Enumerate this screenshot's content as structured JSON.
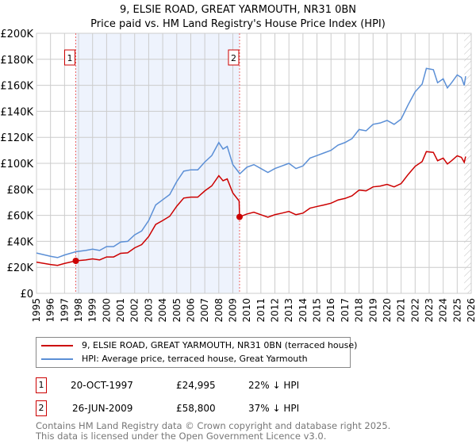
{
  "title": "9, ELSIE ROAD, GREAT YARMOUTH, NR31 0BN",
  "subtitle": "Price paid vs. HM Land Registry's House Price Index (HPI)",
  "legend": {
    "property": "9, ELSIE ROAD, GREAT YARMOUTH, NR31 0BN (terraced house)",
    "hpi": "HPI: Average price, terraced house, Great Yarmouth"
  },
  "sales": [
    {
      "num": "1",
      "date": "20-OCT-1997",
      "price": "£24,995",
      "delta": "22% ↓ HPI",
      "year": 1997.8,
      "value": 24995
    },
    {
      "num": "2",
      "date": "26-JUN-2009",
      "price": "£58,800",
      "delta": "37% ↓ HPI",
      "year": 2009.48,
      "value": 58800
    }
  ],
  "footer": {
    "line1": "Contains HM Land Registry data © Crown copyright and database right 2025.",
    "line2": "This data is licensed under the Open Government Licence v3.0."
  },
  "colors": {
    "property": "#cc0000",
    "hpi": "#5b8fd6",
    "shade": "#eef3fd"
  },
  "chart_data": {
    "type": "line",
    "xlim": [
      1995,
      2026
    ],
    "ylim": [
      0,
      200000
    ],
    "yticks": [
      {
        "v": 0,
        "label": "£0"
      },
      {
        "v": 20000,
        "label": "£20K"
      },
      {
        "v": 40000,
        "label": "£40K"
      },
      {
        "v": 60000,
        "label": "£60K"
      },
      {
        "v": 80000,
        "label": "£80K"
      },
      {
        "v": 100000,
        "label": "£100K"
      },
      {
        "v": 120000,
        "label": "£120K"
      },
      {
        "v": 140000,
        "label": "£140K"
      },
      {
        "v": 160000,
        "label": "£160K"
      },
      {
        "v": 180000,
        "label": "£180K"
      },
      {
        "v": 200000,
        "label": "£200K"
      }
    ],
    "xticks": [
      "1995",
      "1996",
      "1997",
      "1998",
      "1999",
      "2000",
      "2001",
      "2002",
      "2003",
      "2004",
      "2005",
      "2006",
      "2007",
      "2008",
      "2009",
      "2010",
      "2011",
      "2012",
      "2013",
      "2014",
      "2015",
      "2016",
      "2017",
      "2018",
      "2019",
      "2020",
      "2021",
      "2022",
      "2023",
      "2024",
      "2025",
      "2026"
    ],
    "hpi": [
      [
        1995,
        31
      ],
      [
        1996,
        28.5
      ],
      [
        1996.5,
        27.5
      ],
      [
        1997,
        29.5
      ],
      [
        1997.8,
        32
      ],
      [
        1998.5,
        33
      ],
      [
        1999,
        34
      ],
      [
        1999.5,
        33
      ],
      [
        2000,
        36
      ],
      [
        2000.5,
        36
      ],
      [
        2001,
        39.5
      ],
      [
        2001.5,
        40
      ],
      [
        2002,
        45
      ],
      [
        2002.5,
        48
      ],
      [
        2003,
        56
      ],
      [
        2003.5,
        68
      ],
      [
        2004,
        72
      ],
      [
        2004.5,
        76
      ],
      [
        2005,
        86
      ],
      [
        2005.5,
        94
      ],
      [
        2006,
        95
      ],
      [
        2006.5,
        95
      ],
      [
        2007,
        101
      ],
      [
        2007.5,
        106
      ],
      [
        2008,
        116
      ],
      [
        2008.3,
        111
      ],
      [
        2008.6,
        113
      ],
      [
        2009,
        99
      ],
      [
        2009.5,
        92
      ],
      [
        2010,
        97
      ],
      [
        2010.5,
        99
      ],
      [
        2011,
        96
      ],
      [
        2011.5,
        93
      ],
      [
        2012,
        96
      ],
      [
        2012.5,
        98
      ],
      [
        2013,
        100
      ],
      [
        2013.5,
        96
      ],
      [
        2014,
        98
      ],
      [
        2014.5,
        104
      ],
      [
        2015,
        106
      ],
      [
        2015.5,
        108
      ],
      [
        2016,
        110
      ],
      [
        2016.5,
        114
      ],
      [
        2017,
        116
      ],
      [
        2017.5,
        119
      ],
      [
        2018,
        126
      ],
      [
        2018.5,
        125
      ],
      [
        2019,
        130
      ],
      [
        2019.5,
        131
      ],
      [
        2020,
        133
      ],
      [
        2020.5,
        130
      ],
      [
        2021,
        134
      ],
      [
        2021.5,
        145
      ],
      [
        2022,
        155
      ],
      [
        2022.5,
        161
      ],
      [
        2022.8,
        173
      ],
      [
        2023.3,
        172
      ],
      [
        2023.6,
        162
      ],
      [
        2024,
        165
      ],
      [
        2024.3,
        158
      ],
      [
        2024.6,
        162
      ],
      [
        2025,
        168
      ],
      [
        2025.3,
        166
      ],
      [
        2025.5,
        160
      ],
      [
        2025.6,
        167
      ]
    ],
    "property": [
      [
        1995,
        24
      ],
      [
        1996,
        22.2
      ],
      [
        1996.5,
        21.5
      ],
      [
        1997,
        23
      ],
      [
        1997.8,
        25
      ],
      [
        1998.5,
        25.7
      ],
      [
        1999,
        26.5
      ],
      [
        1999.5,
        25.7
      ],
      [
        2000,
        28
      ],
      [
        2000.5,
        28
      ],
      [
        2001,
        30.8
      ],
      [
        2001.5,
        31.2
      ],
      [
        2002,
        35
      ],
      [
        2002.5,
        37.5
      ],
      [
        2003,
        43.7
      ],
      [
        2003.5,
        53
      ],
      [
        2004,
        56
      ],
      [
        2004.5,
        59.3
      ],
      [
        2005,
        67
      ],
      [
        2005.5,
        73.3
      ],
      [
        2006,
        74
      ],
      [
        2006.5,
        74
      ],
      [
        2007,
        78.8
      ],
      [
        2007.5,
        82.7
      ],
      [
        2008,
        90.5
      ],
      [
        2008.3,
        86.6
      ],
      [
        2008.6,
        88
      ],
      [
        2009,
        77.2
      ],
      [
        2009.45,
        71
      ],
      [
        2009.48,
        58.8
      ],
      [
        2010,
        61
      ],
      [
        2010.5,
        62.4
      ],
      [
        2011,
        60.5
      ],
      [
        2011.5,
        58.6
      ],
      [
        2012,
        60.5
      ],
      [
        2012.5,
        61.7
      ],
      [
        2013,
        63
      ],
      [
        2013.5,
        60.5
      ],
      [
        2014,
        61.7
      ],
      [
        2014.5,
        65.5
      ],
      [
        2015,
        66.8
      ],
      [
        2015.5,
        68
      ],
      [
        2016,
        69.3
      ],
      [
        2016.5,
        71.8
      ],
      [
        2017,
        73
      ],
      [
        2017.5,
        75
      ],
      [
        2018,
        79.4
      ],
      [
        2018.5,
        78.8
      ],
      [
        2019,
        81.9
      ],
      [
        2019.5,
        82.5
      ],
      [
        2020,
        83.8
      ],
      [
        2020.5,
        81.9
      ],
      [
        2021,
        84.4
      ],
      [
        2021.5,
        91.4
      ],
      [
        2022,
        97.7
      ],
      [
        2022.5,
        101.4
      ],
      [
        2022.8,
        109
      ],
      [
        2023.3,
        108.4
      ],
      [
        2023.6,
        102
      ],
      [
        2024,
        104
      ],
      [
        2024.3,
        99.5
      ],
      [
        2024.6,
        102
      ],
      [
        2025,
        105.8
      ],
      [
        2025.3,
        104.6
      ],
      [
        2025.5,
        100.8
      ],
      [
        2025.6,
        105.2
      ]
    ],
    "units": "£K",
    "forecast_hatch_from": 2025.5
  }
}
